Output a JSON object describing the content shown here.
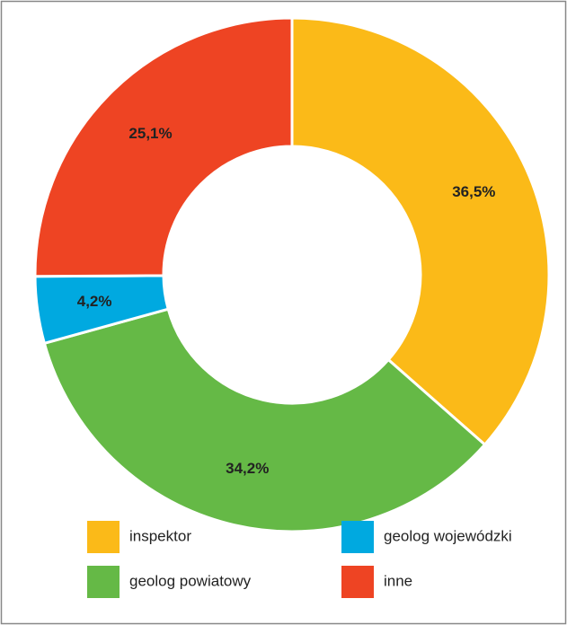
{
  "chart_data": {
    "type": "donut",
    "categories": [
      "inspektor",
      "geolog powiatowy",
      "geolog wojewódzki",
      "inne"
    ],
    "values": [
      36.5,
      34.2,
      4.2,
      25.1
    ],
    "value_labels": [
      "36,5%",
      "34,2%",
      "4,2%",
      "25,1%"
    ],
    "colors": [
      "#fbba18",
      "#65b946",
      "#00a9e0",
      "#ee4423"
    ]
  }
}
